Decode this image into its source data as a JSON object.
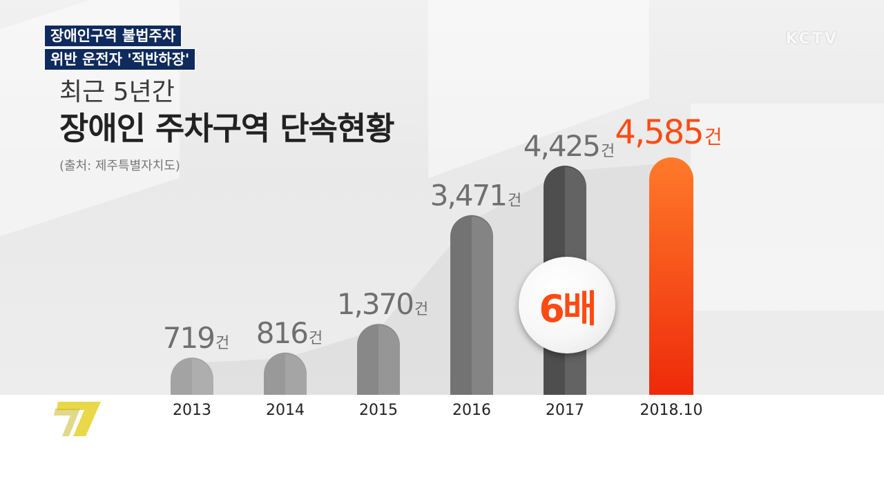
{
  "caption": {
    "line1": "장애인구역 불법주차",
    "line2": "위반 운전자 '적반하장'"
  },
  "logo": "KCTV",
  "subtitle": "최근 5년간",
  "title": "장애인 주차구역 단속현황",
  "source": "(출처: 제주특별자치도)",
  "badge": "6배",
  "colors": {
    "caption_bg": "#0f2a5c",
    "highlight": "#ff4a12",
    "bar_2013": "#a3a3a3",
    "bar_2014": "#999999",
    "bar_2015": "#888888",
    "bar_2016": "#737373",
    "bar_2017": "#4e4e4e"
  },
  "channel_icon": "seven-icon",
  "chart_data": {
    "type": "bar",
    "categories": [
      "2013",
      "2014",
      "2015",
      "2016",
      "2017",
      "2018.10"
    ],
    "values": [
      719,
      816,
      1370,
      3471,
      4425,
      4585
    ],
    "value_labels": [
      "719",
      "816",
      "1,370",
      "3,471",
      "4,425",
      "4,585"
    ],
    "unit": "건",
    "highlight_index": 5,
    "title": "장애인 주차구역 단속현황",
    "subtitle": "최근 5년간",
    "xlabel": "",
    "ylabel": "",
    "annotation": "6배",
    "grid": false,
    "legend": "none"
  }
}
